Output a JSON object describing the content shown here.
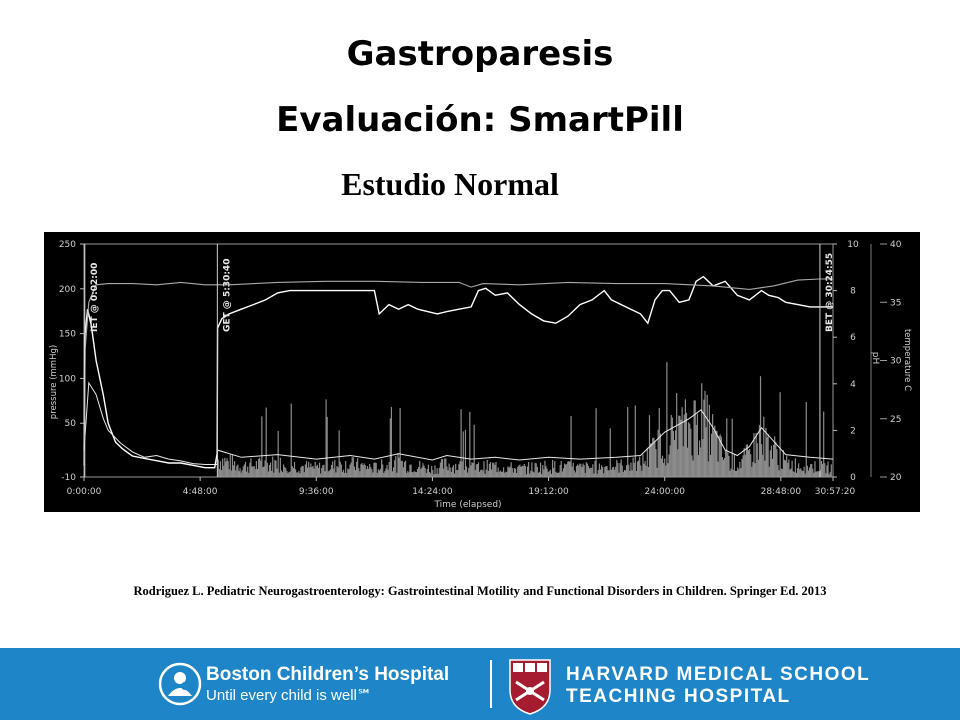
{
  "slide": {
    "title_line1": "Gastroparesis",
    "title_line2": "Evaluación: SmartPill",
    "subtitle": "Estudio Normal",
    "citation": "Rodriguez L. Pediatric Neurogastroenterology: Gastrointestinal Motility and Functional Disorders in Children. Springer Ed. 2013"
  },
  "chart_data": {
    "type": "line",
    "title": "",
    "xlabel": "Time (elapsed)",
    "ylabel_left": "pressure (mmHg)",
    "ylabel_ph": "pH",
    "ylabel_temp": "temperature C",
    "x_range_hours": [
      0,
      30.955
    ],
    "x_ticks": [
      {
        "label": "0:00:00",
        "h": 0
      },
      {
        "label": "4:48:00",
        "h": 4.8
      },
      {
        "label": "9:36:00",
        "h": 9.6
      },
      {
        "label": "14:24:00",
        "h": 14.4
      },
      {
        "label": "19:12:00",
        "h": 19.2
      },
      {
        "label": "24:00:00",
        "h": 24.0
      },
      {
        "label": "28:48:00",
        "h": 28.8
      },
      {
        "label": "30:57:20",
        "h": 30.955
      }
    ],
    "pressure_axis": {
      "min": -10,
      "max": 250,
      "ticks": [
        250,
        200,
        150,
        100,
        50,
        -10
      ]
    },
    "ph_axis": {
      "min": 0,
      "max": 10,
      "ticks": [
        10,
        8,
        6,
        4,
        2,
        0
      ]
    },
    "temp_axis": {
      "min": 20,
      "max": 40,
      "ticks": [
        40,
        35,
        30,
        25,
        20
      ],
      "tick_labels": [
        "40",
        "35",
        "30",
        "25",
        "20"
      ]
    },
    "event_markers": [
      {
        "label": "IET @ 0:02:00",
        "h": 0.033
      },
      {
        "label": "GET @ 5:30:40",
        "h": 5.511
      },
      {
        "label": "BET @ 30:24:55",
        "h": 30.415
      }
    ],
    "series": [
      {
        "name": "pH",
        "axis": "ph",
        "points": [
          [
            0,
            0.5
          ],
          [
            0.03,
            6.0
          ],
          [
            0.15,
            7.2
          ],
          [
            0.3,
            6.5
          ],
          [
            0.5,
            5.0
          ],
          [
            0.8,
            3.5
          ],
          [
            1.0,
            2.3
          ],
          [
            1.3,
            1.5
          ],
          [
            1.6,
            1.2
          ],
          [
            2.0,
            0.9
          ],
          [
            2.5,
            0.8
          ],
          [
            3.0,
            0.7
          ],
          [
            3.5,
            0.6
          ],
          [
            4.0,
            0.6
          ],
          [
            4.5,
            0.5
          ],
          [
            5.0,
            0.4
          ],
          [
            5.4,
            0.4
          ],
          [
            5.5,
            1.0
          ],
          [
            5.52,
            6.4
          ],
          [
            5.7,
            6.8
          ],
          [
            6.0,
            7.0
          ],
          [
            6.5,
            7.2
          ],
          [
            7.0,
            7.4
          ],
          [
            7.5,
            7.6
          ],
          [
            8.0,
            7.9
          ],
          [
            8.5,
            8.0
          ],
          [
            9.0,
            8.0
          ],
          [
            10.0,
            8.0
          ],
          [
            11.0,
            8.0
          ],
          [
            12.0,
            8.0
          ],
          [
            12.2,
            7.0
          ],
          [
            12.6,
            7.4
          ],
          [
            13.0,
            7.2
          ],
          [
            13.4,
            7.4
          ],
          [
            13.8,
            7.2
          ],
          [
            14.2,
            7.1
          ],
          [
            14.6,
            7.0
          ],
          [
            15.0,
            7.1
          ],
          [
            15.5,
            7.2
          ],
          [
            16.0,
            7.3
          ],
          [
            16.3,
            8.0
          ],
          [
            16.6,
            8.1
          ],
          [
            17.0,
            7.8
          ],
          [
            17.5,
            7.9
          ],
          [
            18.0,
            7.4
          ],
          [
            18.5,
            7.0
          ],
          [
            19.0,
            6.7
          ],
          [
            19.5,
            6.6
          ],
          [
            20.0,
            6.9
          ],
          [
            20.5,
            7.4
          ],
          [
            21.0,
            7.6
          ],
          [
            21.5,
            8.0
          ],
          [
            21.8,
            7.6
          ],
          [
            22.2,
            7.4
          ],
          [
            22.6,
            7.2
          ],
          [
            23.0,
            7.0
          ],
          [
            23.3,
            6.6
          ],
          [
            23.6,
            7.6
          ],
          [
            23.9,
            8.0
          ],
          [
            24.2,
            8.0
          ],
          [
            24.6,
            7.5
          ],
          [
            25.0,
            7.6
          ],
          [
            25.3,
            8.4
          ],
          [
            25.6,
            8.6
          ],
          [
            26.0,
            8.2
          ],
          [
            26.5,
            8.4
          ],
          [
            27.0,
            7.8
          ],
          [
            27.5,
            7.6
          ],
          [
            28.0,
            8.0
          ],
          [
            28.3,
            7.8
          ],
          [
            28.7,
            7.7
          ],
          [
            29.0,
            7.5
          ],
          [
            29.5,
            7.4
          ],
          [
            30.0,
            7.3
          ],
          [
            30.415,
            7.3
          ],
          [
            30.95,
            7.3
          ]
        ]
      },
      {
        "name": "temperature C",
        "axis": "temp",
        "points": [
          [
            0,
            21.0
          ],
          [
            0.05,
            31.0
          ],
          [
            0.2,
            35.0
          ],
          [
            0.5,
            36.5
          ],
          [
            1.0,
            36.6
          ],
          [
            2.0,
            36.6
          ],
          [
            3.0,
            36.5
          ],
          [
            4.0,
            36.7
          ],
          [
            5.0,
            36.5
          ],
          [
            6.0,
            36.5
          ],
          [
            8.0,
            36.7
          ],
          [
            10.0,
            36.8
          ],
          [
            12.0,
            36.8
          ],
          [
            14.0,
            36.7
          ],
          [
            15.5,
            36.7
          ],
          [
            16.0,
            36.3
          ],
          [
            16.5,
            36.6
          ],
          [
            18.0,
            36.5
          ],
          [
            20.0,
            36.7
          ],
          [
            22.0,
            36.6
          ],
          [
            24.0,
            36.6
          ],
          [
            26.0,
            36.4
          ],
          [
            27.5,
            36.1
          ],
          [
            28.5,
            36.4
          ],
          [
            29.5,
            36.9
          ],
          [
            30.4,
            37.0
          ],
          [
            30.95,
            37.0
          ]
        ]
      },
      {
        "name": "pressure (mmHg)",
        "axis": "pressure",
        "points": [
          [
            0,
            20
          ],
          [
            0.2,
            95
          ],
          [
            0.5,
            82
          ],
          [
            0.8,
            55
          ],
          [
            1.0,
            42
          ],
          [
            1.5,
            28
          ],
          [
            2.0,
            18
          ],
          [
            2.5,
            12
          ],
          [
            3.0,
            14
          ],
          [
            3.5,
            10
          ],
          [
            4.0,
            8
          ],
          [
            4.5,
            5
          ],
          [
            5.0,
            4
          ],
          [
            5.3,
            4
          ],
          [
            5.51,
            4
          ],
          [
            5.52,
            20
          ],
          [
            6.5,
            12
          ],
          [
            8.0,
            15
          ],
          [
            9.6,
            10
          ],
          [
            11.0,
            14
          ],
          [
            12.0,
            10
          ],
          [
            13.0,
            16
          ],
          [
            14.4,
            9
          ],
          [
            15.0,
            14
          ],
          [
            16.0,
            10
          ],
          [
            17.0,
            12
          ],
          [
            18.0,
            9
          ],
          [
            19.2,
            12
          ],
          [
            20.5,
            10
          ],
          [
            22.0,
            12
          ],
          [
            23.0,
            14
          ],
          [
            24.0,
            40
          ],
          [
            25.0,
            55
          ],
          [
            25.5,
            65
          ],
          [
            26.0,
            45
          ],
          [
            26.5,
            20
          ],
          [
            27.0,
            14
          ],
          [
            27.5,
            24
          ],
          [
            28.0,
            45
          ],
          [
            28.5,
            30
          ],
          [
            29.0,
            15
          ],
          [
            30.0,
            12
          ],
          [
            30.95,
            10
          ]
        ]
      }
    ]
  }
}
